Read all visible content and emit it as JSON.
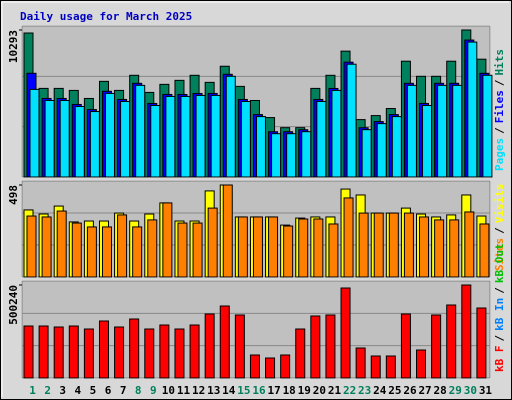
{
  "chart_data": {
    "type": "bar",
    "title": "Daily usage for March 2025",
    "categories": [
      "1",
      "2",
      "3",
      "4",
      "5",
      "6",
      "7",
      "8",
      "9",
      "10",
      "11",
      "12",
      "13",
      "14",
      "15",
      "16",
      "17",
      "18",
      "19",
      "20",
      "21",
      "22",
      "23",
      "24",
      "25",
      "26",
      "27",
      "28",
      "29",
      "30",
      "31"
    ],
    "category_colors": [
      "#00805c",
      "#00805c",
      "#000000",
      "#000000",
      "#000000",
      "#000000",
      "#000000",
      "#00805c",
      "#00805c",
      "#000000",
      "#000000",
      "#000000",
      "#000000",
      "#000000",
      "#00805c",
      "#00805c",
      "#000000",
      "#000000",
      "#000000",
      "#000000",
      "#000000",
      "#00805c",
      "#00805c",
      "#000000",
      "#000000",
      "#000000",
      "#000000",
      "#000000",
      "#00805c",
      "#00805c",
      "#000000"
    ],
    "legend_separator": "/",
    "panels": [
      {
        "ylim": [
          0,
          10293
        ],
        "yticks": [
          10293
        ],
        "series": [
          {
            "name": "Hits",
            "color": "#00805c",
            "values": [
              10082,
              6204,
              6204,
              6063,
              5499,
              6698,
              6063,
              7121,
              5922,
              6486,
              6768,
              7121,
              6627,
              7755,
              6345,
              5358,
              4160,
              3455,
              3455,
              6204,
              7121,
              8813,
              4019,
              4300,
              4794,
              8108,
              7050,
              7050,
              8108,
              10293,
              8249
            ]
          },
          {
            "name": "Files",
            "color": "#0000ff",
            "values": [
              7262,
              5500,
              5500,
              5080,
              4720,
              6000,
              5430,
              6560,
              5150,
              5780,
              5780,
              5850,
              5850,
              7190,
              5430,
              4370,
              3170,
              3170,
              3310,
              5430,
              6200,
              8040,
              3450,
              3880,
              4370,
              6560,
              5150,
              6560,
              6560,
              9590,
              7260
            ]
          },
          {
            "name": "Pages",
            "color": "#00e0ff",
            "values": [
              6134,
              5358,
              5358,
              4935,
              4583,
              5852,
              5288,
              6416,
              5006,
              5640,
              5640,
              5711,
              5711,
              7050,
              5288,
              4230,
              3032,
              3032,
              3173,
              5288,
              6063,
              7896,
              3314,
              3737,
              4230,
              6416,
              5006,
              6416,
              6416,
              9447,
              7121
            ]
          }
        ]
      },
      {
        "ylim": [
          0,
          498
        ],
        "yticks": [
          498
        ],
        "series": [
          {
            "name": "Visits",
            "color": "#ffff00",
            "values": [
              363,
              341,
              384,
              298,
              303,
              303,
              346,
              303,
              341,
              401,
              303,
              303,
              466,
              498,
              325,
              325,
              325,
              281,
              319,
              325,
              325,
              476,
              444,
              346,
              346,
              373,
              341,
              325,
              336,
              444,
              330
            ]
          },
          {
            "name": "Sites",
            "color": "#ff8000",
            "values": [
              330,
              325,
              357,
              292,
              271,
              271,
              336,
              271,
              309,
              401,
              292,
              292,
              373,
              498,
              325,
              325,
              325,
              276,
              314,
              314,
              287,
              428,
              346,
              346,
              346,
              346,
              325,
              309,
              309,
              352,
              287
            ]
          }
        ]
      },
      {
        "ylim": [
          0,
          500240
        ],
        "yticks": [
          500240
        ],
        "series": [
          {
            "name": "kB F",
            "color": "#ff0000",
            "values": [
              279708,
              279708,
              274329,
              279708,
              263571,
              306603,
              274329,
              317361,
              263571,
              285087,
              263571,
              285087,
              344256,
              387288,
              338877,
              123717,
              107580,
              123717,
              263571,
              333498,
              338877,
              484110,
              161370,
              118338,
              118338,
              344256,
              150612,
              338877,
              392667,
              500240,
              376530
            ]
          }
        ],
        "legend_only": [
          {
            "name": "kB In",
            "color": "#0080ff"
          },
          {
            "name": "kB Out",
            "color": "#00c000"
          }
        ]
      }
    ]
  }
}
